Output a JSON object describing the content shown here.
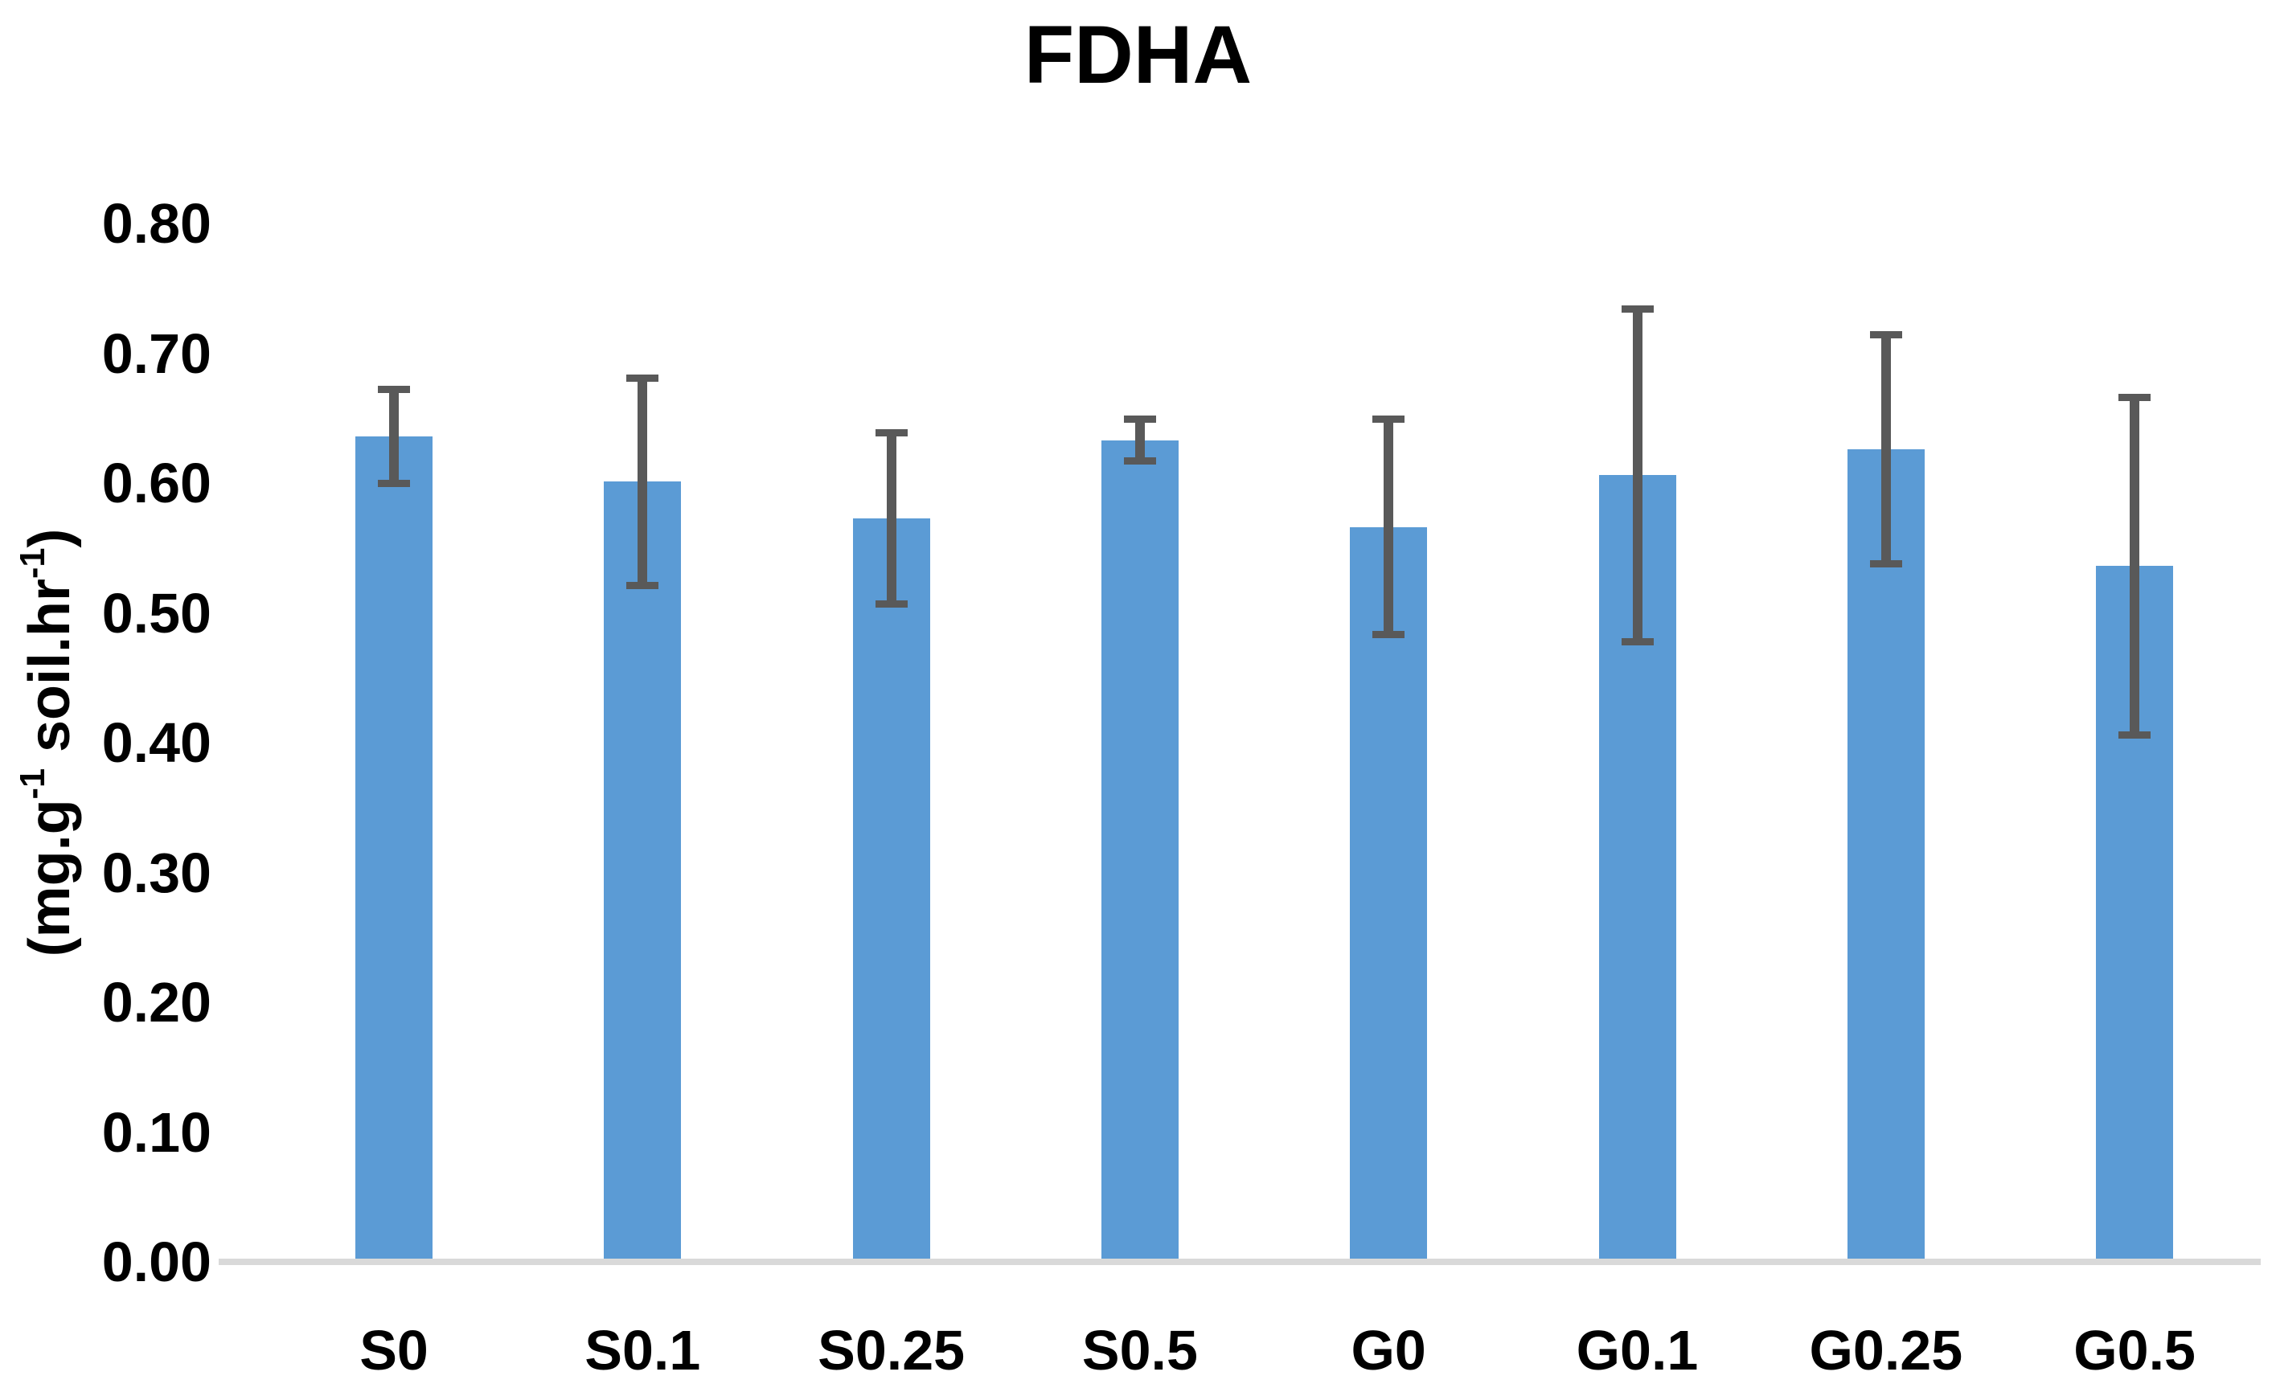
{
  "chart_data": {
    "type": "bar",
    "title": "FDHA",
    "y_axis_title": "(mg.g-1 soil.hr-1)",
    "y_axis_title_parts": {
      "open": "(mg.g",
      "sup1": "-1",
      "mid": " soil.hr",
      "sup2": "-1",
      "close": ")"
    },
    "xlabel": "",
    "categories": [
      "S0",
      "S0.1",
      "S0.25",
      "S0.5",
      "G0",
      "G0.1",
      "G0.25",
      "G0.5"
    ],
    "values": [
      0.636,
      0.601,
      0.573,
      0.633,
      0.566,
      0.606,
      0.626,
      0.536
    ],
    "error_bars_plus_minus": [
      0.036,
      0.08,
      0.066,
      0.016,
      0.083,
      0.128,
      0.088,
      0.13
    ],
    "ylim": [
      0.0,
      0.8
    ],
    "ytick_step": 0.1,
    "ytick_labels": [
      "0.00",
      "0.10",
      "0.20",
      "0.30",
      "0.40",
      "0.50",
      "0.60",
      "0.70",
      "0.80"
    ],
    "grid": false,
    "legend": "none",
    "colors": {
      "bar": "#5B9BD5",
      "error_bar": "#595959",
      "axis_line": "#D9D9D9",
      "text": "#000000",
      "background": "#FFFFFF"
    }
  }
}
